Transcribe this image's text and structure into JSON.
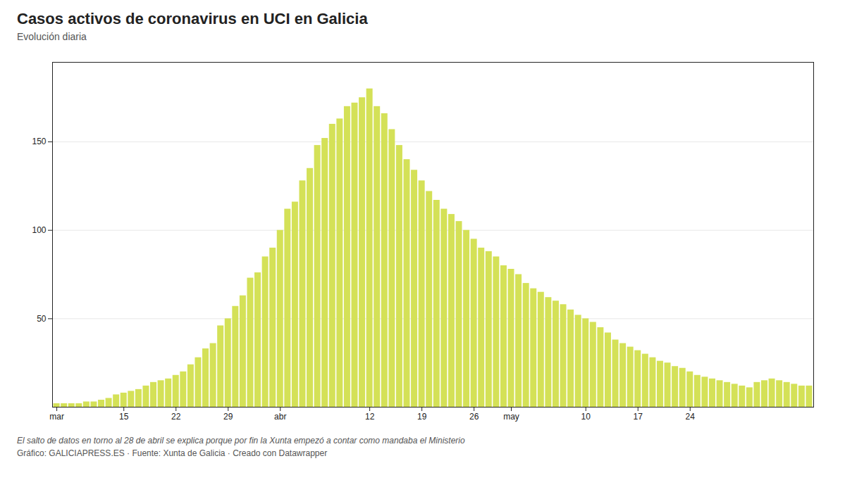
{
  "chart_data": {
    "type": "bar",
    "title": "Casos activos de coronavirus en UCI en Galicia",
    "subtitle": "Evolución diaria",
    "footnote": "El salto de datos en torno al 28 de abril se explica porque por fin la Xunta empezó a contar como mandaba el Ministerio",
    "source": "Gráfico: GALICIAPRESS.ES · Fuente: Xunta de Galicia · Creado con Datawrapper",
    "categories": [
      "mar",
      null,
      null,
      null,
      null,
      null,
      null,
      null,
      null,
      "15",
      null,
      null,
      null,
      null,
      null,
      null,
      "22",
      null,
      null,
      null,
      null,
      null,
      null,
      "29",
      null,
      null,
      null,
      null,
      null,
      null,
      "abr",
      null,
      null,
      null,
      null,
      null,
      null,
      null,
      null,
      null,
      null,
      null,
      "12",
      null,
      null,
      null,
      null,
      null,
      null,
      "19",
      null,
      null,
      null,
      null,
      null,
      null,
      "26",
      null,
      null,
      null,
      null,
      "may",
      null,
      null,
      null,
      null,
      null,
      null,
      null,
      null,
      null,
      "10",
      null,
      null,
      null,
      null,
      null,
      null,
      "17",
      null,
      null,
      null,
      null,
      null,
      null,
      "24",
      null,
      null,
      null,
      null,
      null,
      null,
      null,
      null,
      null,
      null,
      null,
      null,
      null,
      null,
      null,
      null
    ],
    "values": [
      2,
      2,
      2,
      2,
      3,
      3,
      4,
      5,
      7,
      8,
      9,
      10,
      12,
      14,
      15,
      16,
      18,
      20,
      24,
      28,
      33,
      36,
      46,
      50,
      57,
      63,
      73,
      76,
      85,
      90,
      100,
      112,
      116,
      128,
      135,
      148,
      152,
      160,
      163,
      170,
      172,
      175,
      180,
      170,
      166,
      157,
      148,
      140,
      134,
      128,
      122,
      117,
      112,
      109,
      105,
      100,
      95,
      90,
      88,
      85,
      80,
      78,
      75,
      70,
      67,
      65,
      62,
      60,
      58,
      55,
      52,
      50,
      48,
      45,
      42,
      38,
      36,
      34,
      32,
      30,
      28,
      26,
      25,
      23,
      22,
      20,
      18,
      17,
      16,
      15,
      14,
      13,
      12,
      11,
      14,
      15,
      16,
      15,
      14,
      13,
      12,
      12
    ],
    "color": "#d4e157",
    "ylim": [
      0,
      195
    ],
    "yticks": [
      50,
      100,
      150
    ],
    "grid": true
  }
}
